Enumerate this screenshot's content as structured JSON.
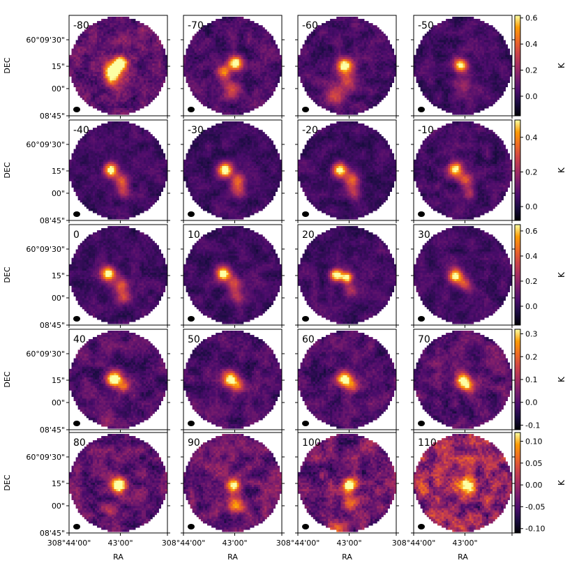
{
  "chart_data": {
    "type": "heatmap",
    "description_type": "channel-map grid",
    "rows": 5,
    "cols": 4,
    "colormap": "inferno",
    "xlabel": "RA",
    "ylabel": "DEC",
    "ytick_labels": [
      "60°09'30\"",
      "15\"",
      "00\"",
      "08'45\""
    ],
    "xtick_labels": [
      "308°44'00\"",
      "43'00\""
    ],
    "xtick_right_label": "308°44'00\"",
    "colorbar_label": "K",
    "panels": [
      {
        "label": "-80",
        "source": [
          {
            "dx": 0.55,
            "dy": 0.55,
            "r": 0.1,
            "a": 0.95
          },
          {
            "dx": 0.37,
            "dy": 0.38,
            "r": 0.12,
            "a": 0.85
          },
          {
            "dx": 0.42,
            "dy": 0.18,
            "r": 0.14,
            "a": 0.35
          }
        ],
        "noise": 0.52
      },
      {
        "label": "-70",
        "source": [
          {
            "dx": 0.55,
            "dy": 0.55,
            "r": 0.1,
            "a": 0.95
          },
          {
            "dx": 0.32,
            "dy": 0.38,
            "r": 0.1,
            "a": 0.55
          },
          {
            "dx": 0.48,
            "dy": 0.02,
            "r": 0.12,
            "a": 0.4
          }
        ],
        "noise": 0.4
      },
      {
        "label": "-60",
        "source": [
          {
            "dx": 0.45,
            "dy": 0.5,
            "r": 0.11,
            "a": 0.95
          },
          {
            "dx": 0.52,
            "dy": 0.18,
            "r": 0.15,
            "a": 0.35
          },
          {
            "dx": 0.25,
            "dy": -0.15,
            "r": 0.16,
            "a": 0.28
          }
        ],
        "noise": 0.38
      },
      {
        "label": "-50",
        "source": [
          {
            "dx": 0.45,
            "dy": 0.5,
            "r": 0.1,
            "a": 0.85
          },
          {
            "dx": 0.55,
            "dy": 0.1,
            "r": 0.14,
            "a": 0.25
          }
        ],
        "noise": 0.34
      },
      {
        "label": "-40",
        "source": [
          {
            "dx": 0.35,
            "dy": 0.5,
            "r": 0.1,
            "a": 0.95
          },
          {
            "dx": 0.58,
            "dy": 0.28,
            "r": 0.1,
            "a": 0.45
          },
          {
            "dx": 0.6,
            "dy": 0.05,
            "r": 0.1,
            "a": 0.35
          }
        ],
        "noise": 0.3
      },
      {
        "label": "-30",
        "source": [
          {
            "dx": 0.35,
            "dy": 0.5,
            "r": 0.1,
            "a": 0.95
          },
          {
            "dx": 0.6,
            "dy": 0.3,
            "r": 0.1,
            "a": 0.5
          },
          {
            "dx": 0.62,
            "dy": 0.08,
            "r": 0.1,
            "a": 0.35
          }
        ],
        "noise": 0.3
      },
      {
        "label": "-20",
        "source": [
          {
            "dx": 0.35,
            "dy": 0.5,
            "r": 0.1,
            "a": 0.9
          },
          {
            "dx": 0.6,
            "dy": 0.3,
            "r": 0.1,
            "a": 0.5
          },
          {
            "dx": 0.64,
            "dy": 0.05,
            "r": 0.1,
            "a": 0.3
          }
        ],
        "noise": 0.3
      },
      {
        "label": "-10",
        "source": [
          {
            "dx": 0.35,
            "dy": 0.52,
            "r": 0.1,
            "a": 0.85
          },
          {
            "dx": 0.55,
            "dy": 0.3,
            "r": 0.1,
            "a": 0.45
          },
          {
            "dx": 0.62,
            "dy": 0.05,
            "r": 0.1,
            "a": 0.28
          }
        ],
        "noise": 0.34
      },
      {
        "label": "0",
        "source": [
          {
            "dx": 0.3,
            "dy": 0.52,
            "r": 0.1,
            "a": 0.95
          },
          {
            "dx": 0.55,
            "dy": 0.3,
            "r": 0.1,
            "a": 0.5
          },
          {
            "dx": 0.62,
            "dy": 0.05,
            "r": 0.1,
            "a": 0.35
          }
        ],
        "noise": 0.32
      },
      {
        "label": "10",
        "source": [
          {
            "dx": 0.3,
            "dy": 0.52,
            "r": 0.1,
            "a": 0.9
          },
          {
            "dx": 0.52,
            "dy": 0.32,
            "r": 0.1,
            "a": 0.45
          },
          {
            "dx": 0.58,
            "dy": 0.05,
            "r": 0.1,
            "a": 0.3
          }
        ],
        "noise": 0.32
      },
      {
        "label": "20",
        "source": [
          {
            "dx": 0.28,
            "dy": 0.5,
            "r": 0.09,
            "a": 0.9
          },
          {
            "dx": 0.5,
            "dy": 0.45,
            "r": 0.08,
            "a": 0.85
          },
          {
            "dx": 0.58,
            "dy": 0.18,
            "r": 0.1,
            "a": 0.3
          }
        ],
        "noise": 0.32
      },
      {
        "label": "30",
        "source": [
          {
            "dx": 0.35,
            "dy": 0.48,
            "r": 0.1,
            "a": 0.9
          },
          {
            "dx": 0.55,
            "dy": 0.3,
            "r": 0.1,
            "a": 0.4
          }
        ],
        "noise": 0.32
      },
      {
        "label": "40",
        "source": [
          {
            "dx": 0.42,
            "dy": 0.5,
            "r": 0.11,
            "a": 0.95
          },
          {
            "dx": 0.62,
            "dy": 0.35,
            "r": 0.09,
            "a": 0.45
          },
          {
            "dx": 0.3,
            "dy": -0.35,
            "r": 0.1,
            "a": 0.25
          }
        ],
        "noise": 0.42
      },
      {
        "label": "50",
        "source": [
          {
            "dx": 0.45,
            "dy": 0.5,
            "r": 0.11,
            "a": 0.95
          },
          {
            "dx": 0.62,
            "dy": 0.35,
            "r": 0.09,
            "a": 0.45
          }
        ],
        "noise": 0.4
      },
      {
        "label": "60",
        "source": [
          {
            "dx": 0.45,
            "dy": 0.5,
            "r": 0.11,
            "a": 0.9
          },
          {
            "dx": 0.62,
            "dy": 0.35,
            "r": 0.09,
            "a": 0.45
          }
        ],
        "noise": 0.42
      },
      {
        "label": "70",
        "source": [
          {
            "dx": 0.5,
            "dy": 0.48,
            "r": 0.11,
            "a": 0.9
          },
          {
            "dx": 0.62,
            "dy": 0.35,
            "r": 0.09,
            "a": 0.45
          }
        ],
        "noise": 0.46
      },
      {
        "label": "80",
        "source": [
          {
            "dx": 0.52,
            "dy": 0.45,
            "r": 0.11,
            "a": 0.95
          },
          {
            "dx": 0.35,
            "dy": -0.05,
            "r": 0.1,
            "a": 0.35
          }
        ],
        "noise": 0.55
      },
      {
        "label": "90",
        "source": [
          {
            "dx": 0.52,
            "dy": 0.45,
            "r": 0.1,
            "a": 0.9
          },
          {
            "dx": 0.58,
            "dy": 0.05,
            "r": 0.12,
            "a": 0.45
          }
        ],
        "noise": 0.55
      },
      {
        "label": "100",
        "source": [
          {
            "dx": 0.55,
            "dy": 0.45,
            "r": 0.1,
            "a": 0.85
          },
          {
            "dx": 0.6,
            "dy": 0.1,
            "r": 0.12,
            "a": 0.5
          },
          {
            "dx": 0.3,
            "dy": -0.45,
            "r": 0.1,
            "a": 0.35
          }
        ],
        "noise": 0.62
      },
      {
        "label": "110",
        "source": [
          {
            "dx": 0.6,
            "dy": 0.45,
            "r": 0.12,
            "a": 0.75
          },
          {
            "dx": -0.3,
            "dy": 0.35,
            "r": 0.1,
            "a": 0.45
          },
          {
            "dx": 0.2,
            "dy": -0.55,
            "r": 0.1,
            "a": 0.45
          }
        ],
        "noise": 0.85
      }
    ],
    "colorbars": [
      {
        "ticks": [
          "0.6",
          "0.4",
          "0.2",
          "0.0"
        ],
        "values": [
          0.6,
          0.4,
          0.2,
          0.0
        ],
        "range": [
          -0.15,
          0.62
        ]
      },
      {
        "ticks": [
          "0.4",
          "0.2",
          "0.0"
        ],
        "values": [
          0.4,
          0.2,
          0.0
        ],
        "range": [
          -0.08,
          0.5
        ]
      },
      {
        "ticks": [
          "0.6",
          "0.4",
          "0.2",
          "0.0"
        ],
        "values": [
          0.6,
          0.4,
          0.2,
          0.0
        ],
        "range": [
          -0.15,
          0.65
        ]
      },
      {
        "ticks": [
          "0.3",
          "0.2",
          "0.1",
          "0.0",
          "-0.1"
        ],
        "values": [
          0.3,
          0.2,
          0.1,
          0.0,
          -0.1
        ],
        "range": [
          -0.12,
          0.32
        ]
      },
      {
        "ticks": [
          "0.10",
          "0.05",
          "0.00",
          "-0.05",
          "-0.10"
        ],
        "values": [
          0.1,
          0.05,
          0.0,
          -0.05,
          -0.1
        ],
        "range": [
          -0.11,
          0.12
        ]
      }
    ]
  }
}
